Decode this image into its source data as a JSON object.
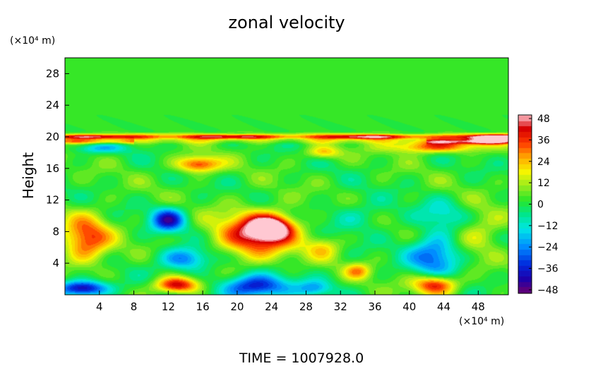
{
  "chart_data": {
    "type": "heatmap",
    "title": "zonal velocity",
    "ylabel": "Height",
    "y_unit": "(×10⁴ m)",
    "x_unit": "(×10⁴ m)",
    "footer": "TIME  =  1007928.0",
    "xlim": [
      0,
      51.5
    ],
    "ylim": [
      0,
      30
    ],
    "x_ticks": [
      4,
      8,
      12,
      16,
      20,
      24,
      28,
      32,
      36,
      40,
      44,
      48
    ],
    "y_ticks": [
      4,
      8,
      12,
      16,
      20,
      24,
      28
    ],
    "colorbar": {
      "range": [
        -50,
        50
      ],
      "ticks": [
        48,
        36,
        24,
        12,
        0,
        -12,
        -24,
        -36,
        -48
      ]
    },
    "background_value": 2,
    "features": [
      {
        "x": 22,
        "y": 7.5,
        "rx": 4.5,
        "ry": 3,
        "value": 38
      },
      {
        "x": 24,
        "y": 8.5,
        "rx": 2.5,
        "ry": 1.5,
        "value": 46
      },
      {
        "x": 2.5,
        "y": 7,
        "rx": 2.8,
        "ry": 3,
        "value": 34
      },
      {
        "x": 13,
        "y": 1.2,
        "rx": 2.5,
        "ry": 1,
        "value": 44
      },
      {
        "x": 43,
        "y": 1.3,
        "rx": 2.5,
        "ry": 1.2,
        "value": 40
      },
      {
        "x": 15.5,
        "y": 16.5,
        "rx": 2.5,
        "ry": 1,
        "value": 36
      },
      {
        "x": 43,
        "y": 18.8,
        "rx": 5,
        "ry": 0.8,
        "value": 36
      },
      {
        "x": 49,
        "y": 19.5,
        "rx": 2.5,
        "ry": 0.5,
        "value": 30
      },
      {
        "x": 30,
        "y": 18,
        "rx": 2,
        "ry": 0.8,
        "value": 22
      },
      {
        "x": 12,
        "y": 9.5,
        "rx": 2,
        "ry": 1.5,
        "value": -40
      },
      {
        "x": 14,
        "y": 4.5,
        "rx": 3,
        "ry": 1.5,
        "value": -30
      },
      {
        "x": 22,
        "y": 1,
        "rx": 4,
        "ry": 1.5,
        "value": -42
      },
      {
        "x": 2,
        "y": 0.8,
        "rx": 3,
        "ry": 1,
        "value": -48
      },
      {
        "x": 43,
        "y": 5,
        "rx": 3,
        "ry": 2.5,
        "value": -32
      },
      {
        "x": 34,
        "y": 10,
        "rx": 4,
        "ry": 2,
        "value": -10
      },
      {
        "x": 29,
        "y": 0.8,
        "rx": 2,
        "ry": 1,
        "value": -20
      },
      {
        "x": 4,
        "y": 18.5,
        "rx": 3,
        "ry": 0.6,
        "value": -18
      },
      {
        "x": 44,
        "y": 10,
        "rx": 3,
        "ry": 2,
        "value": -14
      },
      {
        "x": 30,
        "y": 6,
        "rx": 2,
        "ry": 1.5,
        "value": 16
      },
      {
        "x": 34,
        "y": 3,
        "rx": 1.5,
        "ry": 1,
        "value": 22
      },
      {
        "x": 48,
        "y": 8,
        "rx": 3,
        "ry": 3,
        "value": 14
      }
    ],
    "band": {
      "y": 20,
      "thickness": 0.35,
      "value": 48
    }
  }
}
